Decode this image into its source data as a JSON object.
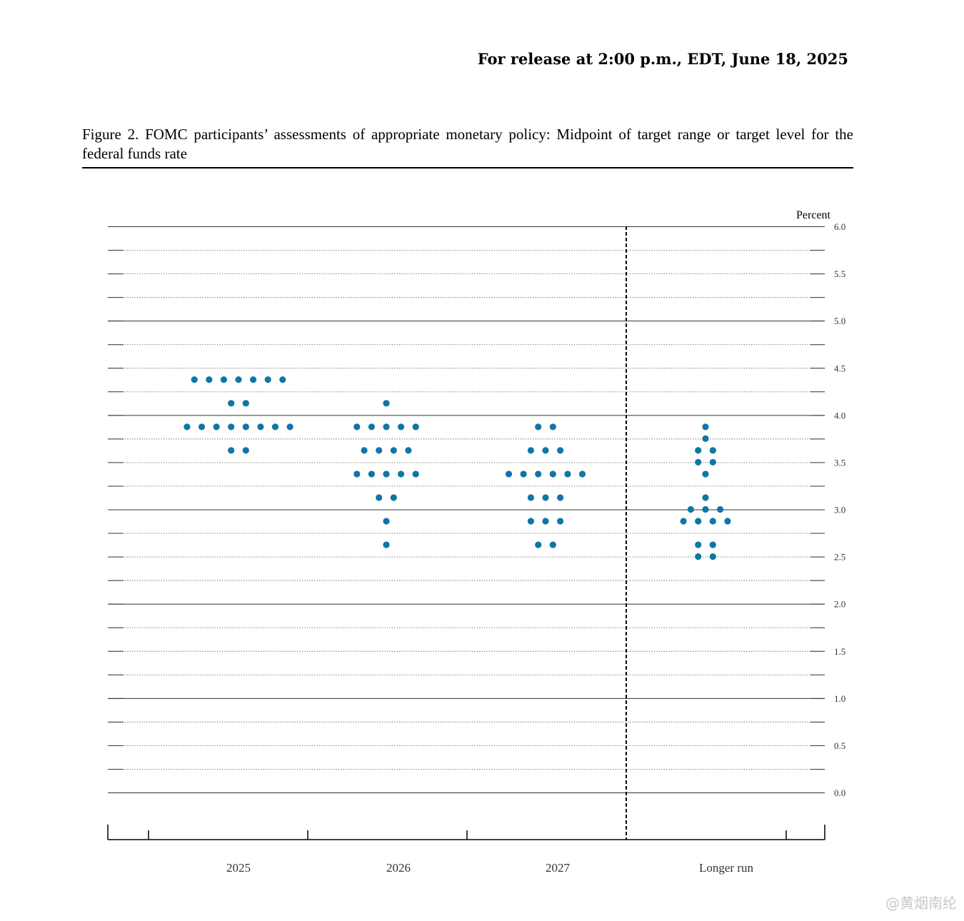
{
  "header": {
    "release": "For release at 2:00 p.m., EDT, June 18, 2025"
  },
  "caption": {
    "text": "Figure 2.  FOMC participants’ assessments of appropriate monetary policy:  Midpoint of target range or target level for the federal funds rate"
  },
  "watermark": {
    "text": "@黄烟南纶"
  },
  "chart_data": {
    "type": "scatter",
    "title": "",
    "xlabel": "",
    "ylabel": "Percent",
    "ylim": [
      0,
      6
    ],
    "yticks": [
      "6.0",
      "5.5",
      "5.0",
      "4.5",
      "4.0",
      "3.5",
      "3.0",
      "2.5",
      "2.0",
      "1.5",
      "1.0",
      "0.5",
      "0.0"
    ],
    "grid": "dotted every 0.25, solid every 1.0",
    "categories": [
      "2025",
      "2026",
      "2027",
      "Longer run"
    ],
    "series_color": "#0F76A6",
    "dots": [
      {
        "category": "2025",
        "counts": [
          {
            "rate": 4.375,
            "n": 7
          },
          {
            "rate": 4.125,
            "n": 2
          },
          {
            "rate": 3.875,
            "n": 8
          },
          {
            "rate": 3.625,
            "n": 2
          }
        ]
      },
      {
        "category": "2026",
        "counts": [
          {
            "rate": 4.125,
            "n": 1
          },
          {
            "rate": 3.875,
            "n": 5
          },
          {
            "rate": 3.625,
            "n": 4
          },
          {
            "rate": 3.375,
            "n": 5
          },
          {
            "rate": 3.125,
            "n": 2
          },
          {
            "rate": 2.875,
            "n": 1
          },
          {
            "rate": 2.625,
            "n": 1
          }
        ]
      },
      {
        "category": "2027",
        "counts": [
          {
            "rate": 3.875,
            "n": 2
          },
          {
            "rate": 3.625,
            "n": 3
          },
          {
            "rate": 3.375,
            "n": 6
          },
          {
            "rate": 3.125,
            "n": 3
          },
          {
            "rate": 2.875,
            "n": 3
          },
          {
            "rate": 2.625,
            "n": 2
          }
        ]
      },
      {
        "category": "Longer run",
        "counts": [
          {
            "rate": 3.875,
            "n": 1
          },
          {
            "rate": 3.75,
            "n": 1
          },
          {
            "rate": 3.625,
            "n": 2
          },
          {
            "rate": 3.5,
            "n": 2
          },
          {
            "rate": 3.375,
            "n": 1
          },
          {
            "rate": 3.125,
            "n": 1
          },
          {
            "rate": 3.0,
            "n": 3
          },
          {
            "rate": 2.875,
            "n": 4
          },
          {
            "rate": 2.625,
            "n": 2
          },
          {
            "rate": 2.5,
            "n": 2
          }
        ]
      }
    ]
  }
}
